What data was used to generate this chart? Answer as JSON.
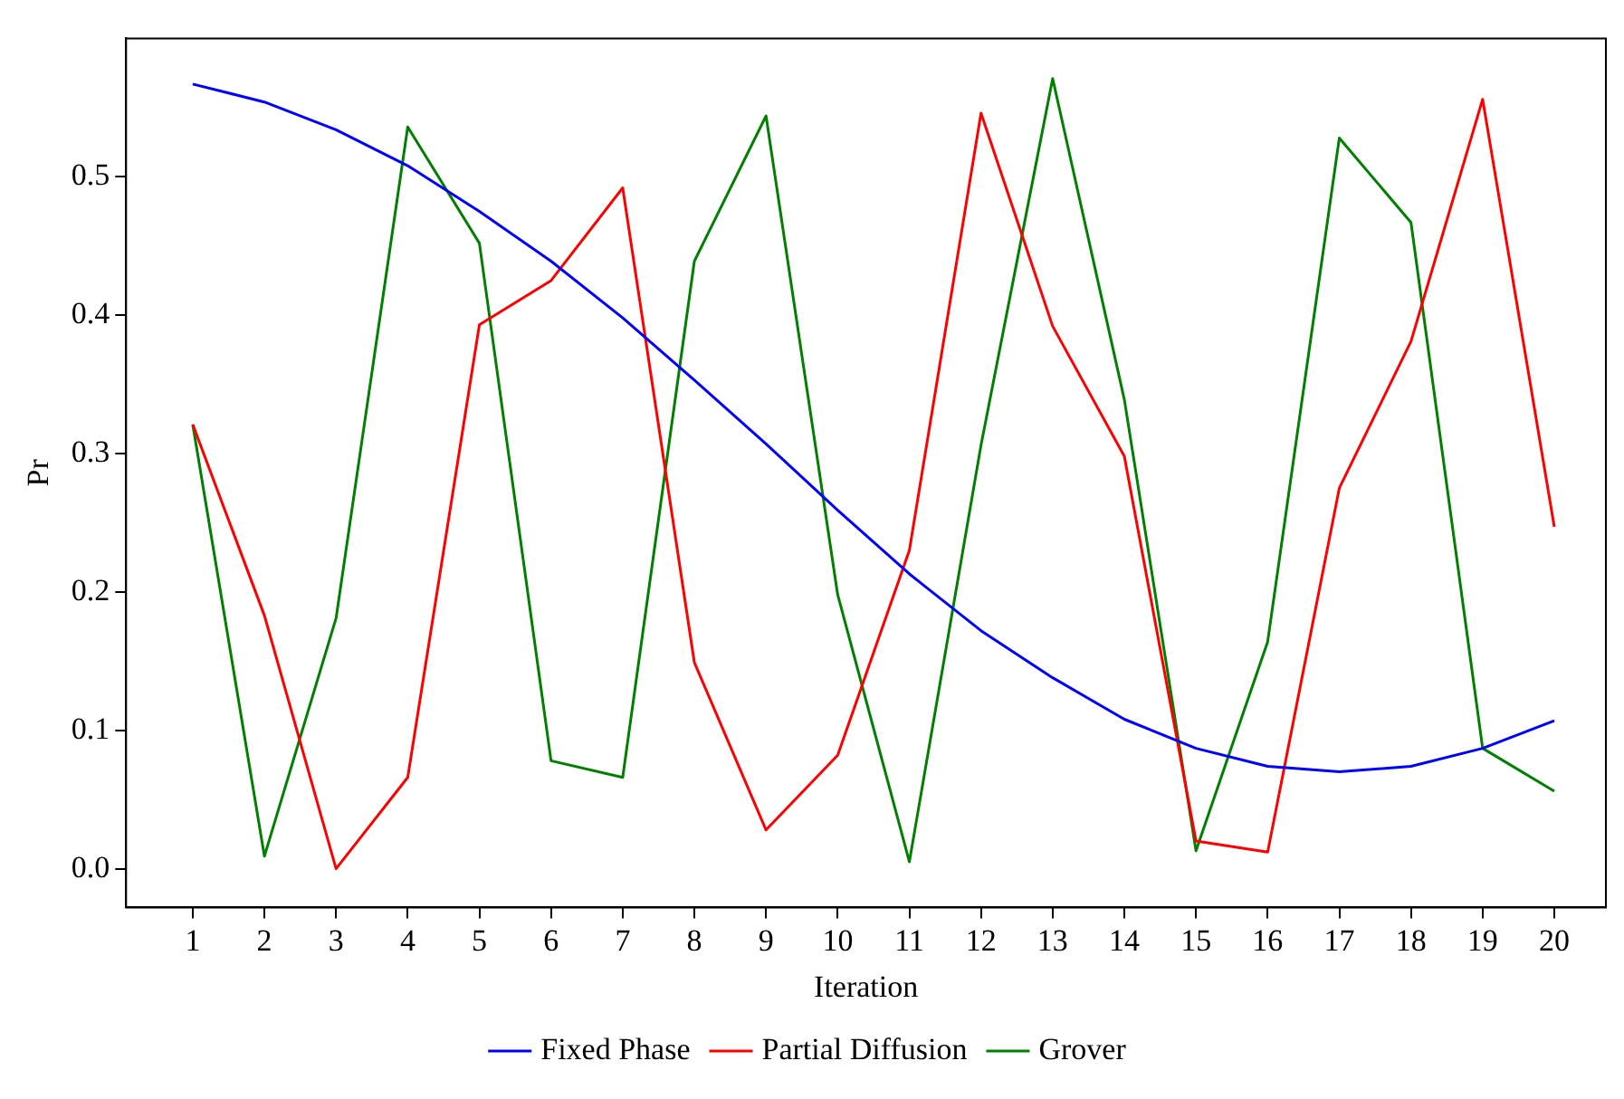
{
  "chart_data": {
    "type": "line",
    "xlabel": "Iteration",
    "ylabel": "Pr",
    "x": [
      1,
      2,
      3,
      4,
      5,
      6,
      7,
      8,
      9,
      10,
      11,
      12,
      13,
      14,
      15,
      16,
      17,
      18,
      19,
      20
    ],
    "xlim": [
      0.07,
      20.72
    ],
    "xticks": [
      1,
      2,
      3,
      4,
      5,
      6,
      7,
      8,
      9,
      10,
      11,
      12,
      13,
      14,
      15,
      16,
      17,
      18,
      19,
      20
    ],
    "ylim": [
      -0.028,
      0.6
    ],
    "yticks": [
      {
        "value": 0,
        "label": "0.0"
      },
      0.1,
      0.2,
      0.3,
      0.4,
      0.5
    ],
    "grid": false,
    "legend": "bottom",
    "marker": "none",
    "line_style": "solid",
    "series": [
      {
        "name": "Fixed Phase",
        "color": "#0000ff",
        "values": [
          0.567,
          0.554,
          0.534,
          0.508,
          0.475,
          0.439,
          0.398,
          0.353,
          0.307,
          0.259,
          0.213,
          0.172,
          0.138,
          0.108,
          0.087,
          0.074,
          0.07,
          0.074,
          0.087,
          0.107
        ]
      },
      {
        "name": "Partial Diffusion",
        "color": "#ff0000",
        "values": [
          0.321,
          0.183,
          0.0,
          0.066,
          0.393,
          0.425,
          0.492,
          0.149,
          0.028,
          0.082,
          0.23,
          0.546,
          0.392,
          0.298,
          0.02,
          0.012,
          0.275,
          0.381,
          0.556,
          0.247
        ]
      },
      {
        "name": "Grover",
        "color": "#008000",
        "values": [
          0.321,
          0.009,
          0.181,
          0.536,
          0.452,
          0.078,
          0.066,
          0.439,
          0.544,
          0.198,
          0.005,
          0.306,
          0.571,
          0.339,
          0.013,
          0.164,
          0.528,
          0.467,
          0.087,
          0.056
        ]
      }
    ]
  }
}
